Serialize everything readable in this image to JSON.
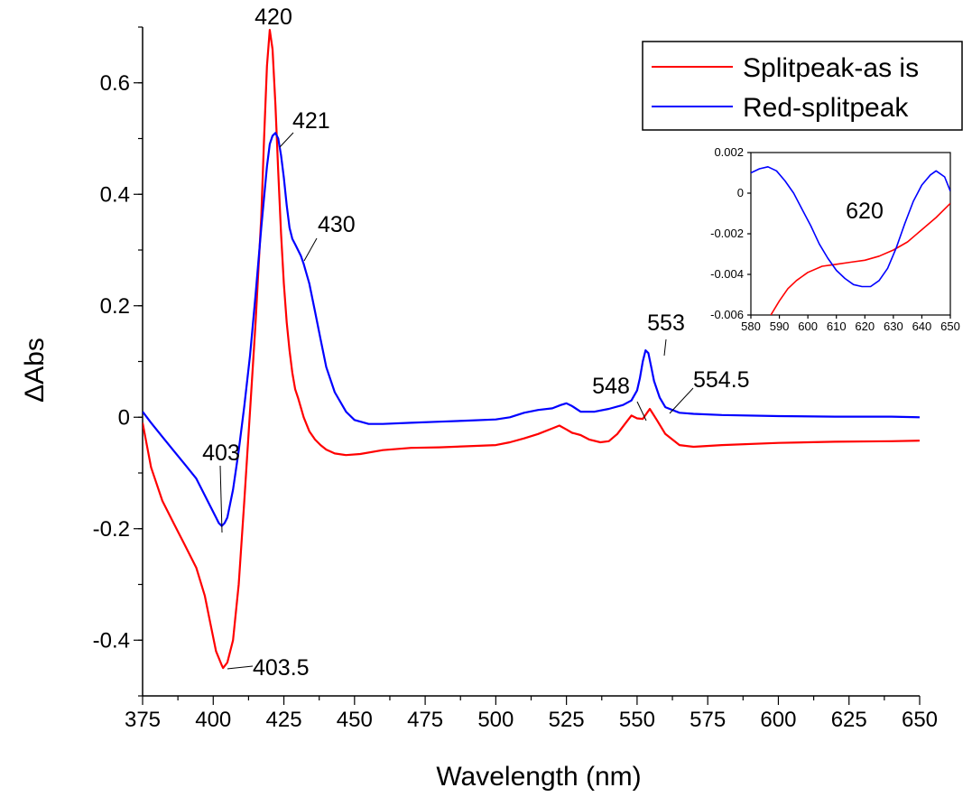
{
  "chart_data": [
    {
      "type": "line",
      "title": "",
      "xlabel": "Wavelength (nm)",
      "ylabel": "ΔAbs",
      "xlim": [
        375,
        650
      ],
      "ylim": [
        -0.5,
        0.7
      ],
      "x_ticks": [
        "375",
        "400",
        "425",
        "450",
        "475",
        "500",
        "525",
        "550",
        "575",
        "600",
        "625",
        "650"
      ],
      "y_ticks": [
        "-0.4",
        "-0.2",
        "0",
        "0.2",
        "0.4",
        "0.6"
      ],
      "grid": false,
      "legend_position": "top-right",
      "series": [
        {
          "name": "Splitpeak-as is",
          "color": "#ff0000",
          "x": [
            375,
            378,
            382,
            386,
            390,
            394,
            397,
            399,
            401,
            403,
            403.5,
            405,
            407,
            409,
            411,
            413,
            415,
            417,
            418,
            419,
            420,
            421,
            422,
            423,
            424,
            425,
            426,
            427,
            428,
            429,
            430,
            432,
            434,
            436,
            438,
            440,
            443,
            447,
            452,
            460,
            470,
            480,
            490,
            500,
            505,
            510,
            515,
            520,
            522.5,
            525,
            527,
            530,
            533,
            537,
            540,
            543,
            546,
            548,
            550,
            552,
            554.5,
            557,
            560,
            565,
            570,
            580,
            600,
            620,
            640,
            650
          ],
          "y": [
            -0.01,
            -0.09,
            -0.15,
            -0.19,
            -0.23,
            -0.27,
            -0.32,
            -0.37,
            -0.42,
            -0.445,
            -0.45,
            -0.44,
            -0.4,
            -0.3,
            -0.15,
            0.01,
            0.17,
            0.36,
            0.5,
            0.63,
            0.695,
            0.66,
            0.56,
            0.44,
            0.33,
            0.24,
            0.17,
            0.12,
            0.08,
            0.05,
            0.035,
            0.0,
            -0.025,
            -0.04,
            -0.05,
            -0.058,
            -0.065,
            -0.068,
            -0.066,
            -0.059,
            -0.055,
            -0.054,
            -0.052,
            -0.05,
            -0.045,
            -0.038,
            -0.03,
            -0.02,
            -0.015,
            -0.022,
            -0.028,
            -0.032,
            -0.04,
            -0.045,
            -0.043,
            -0.03,
            -0.01,
            0.003,
            -0.002,
            -0.003,
            0.015,
            -0.005,
            -0.03,
            -0.05,
            -0.053,
            -0.05,
            -0.046,
            -0.044,
            -0.043,
            -0.042
          ]
        },
        {
          "name": "Red-splitpeak",
          "color": "#0000ff",
          "x": [
            375,
            378,
            382,
            386,
            390,
            394,
            397,
            399,
            401,
            402,
            403,
            404,
            405,
            407,
            409,
            411,
            413,
            415,
            417,
            419,
            420,
            421,
            422,
            423,
            424,
            425,
            426,
            427,
            428,
            429,
            430,
            431,
            432,
            434,
            436,
            438,
            440,
            443,
            447,
            450,
            455,
            460,
            470,
            480,
            490,
            500,
            505,
            510,
            515,
            520,
            523,
            525,
            527,
            530,
            535,
            540,
            545,
            548,
            550,
            551,
            552,
            553,
            554,
            555,
            556,
            558,
            560,
            565,
            570,
            580,
            600,
            620,
            640,
            650
          ],
          "y": [
            0.01,
            -0.01,
            -0.035,
            -0.06,
            -0.085,
            -0.11,
            -0.14,
            -0.16,
            -0.18,
            -0.19,
            -0.195,
            -0.19,
            -0.18,
            -0.13,
            -0.06,
            0.02,
            0.11,
            0.22,
            0.34,
            0.45,
            0.49,
            0.505,
            0.51,
            0.5,
            0.47,
            0.43,
            0.38,
            0.34,
            0.32,
            0.31,
            0.3,
            0.29,
            0.275,
            0.24,
            0.19,
            0.14,
            0.09,
            0.045,
            0.01,
            -0.005,
            -0.012,
            -0.012,
            -0.01,
            -0.008,
            -0.006,
            -0.004,
            0.0,
            0.008,
            0.013,
            0.016,
            0.022,
            0.025,
            0.02,
            0.01,
            0.01,
            0.015,
            0.022,
            0.03,
            0.048,
            0.07,
            0.1,
            0.12,
            0.115,
            0.09,
            0.065,
            0.035,
            0.018,
            0.008,
            0.006,
            0.004,
            0.002,
            0.001,
            0.001,
            0.0
          ]
        }
      ],
      "annotations": [
        "420",
        "421",
        "430",
        "403",
        "403.5",
        "548",
        "553",
        "554.5"
      ]
    },
    {
      "type": "line",
      "title": "",
      "xlabel": "",
      "ylabel": "",
      "xlim": [
        580,
        650
      ],
      "ylim": [
        -0.006,
        0.002
      ],
      "x_ticks": [
        "580",
        "590",
        "600",
        "610",
        "620",
        "630",
        "640",
        "650"
      ],
      "y_ticks": [
        "-0.006",
        "-0.004",
        "-0.002",
        "0",
        "0.002"
      ],
      "grid": false,
      "series": [
        {
          "name": "Splitpeak-as is",
          "color": "#ff0000",
          "x": [
            587,
            590,
            593,
            596,
            600,
            605,
            610,
            615,
            620,
            625,
            630,
            635,
            640,
            645,
            650
          ],
          "y": [
            -0.006,
            -0.0053,
            -0.0047,
            -0.0043,
            -0.0039,
            -0.0036,
            -0.0035,
            -0.0034,
            -0.0033,
            -0.0031,
            -0.0028,
            -0.0024,
            -0.0018,
            -0.0012,
            -0.0005
          ]
        },
        {
          "name": "Red-splitpeak",
          "color": "#0000ff",
          "x": [
            580,
            583,
            586,
            589,
            592,
            595,
            598,
            601,
            604,
            607,
            610,
            613,
            616,
            619,
            622,
            625,
            628,
            631,
            634,
            637,
            640,
            643,
            645,
            648,
            650
          ],
          "y": [
            0.001,
            0.0012,
            0.0013,
            0.0011,
            0.0006,
            0.0,
            -0.0008,
            -0.0016,
            -0.0025,
            -0.0032,
            -0.0038,
            -0.0042,
            -0.0045,
            -0.0046,
            -0.0046,
            -0.0043,
            -0.0037,
            -0.0027,
            -0.0015,
            -0.0004,
            0.0004,
            0.0009,
            0.0011,
            0.0008,
            0.0001
          ]
        }
      ],
      "annotations": [
        "620"
      ]
    }
  ]
}
